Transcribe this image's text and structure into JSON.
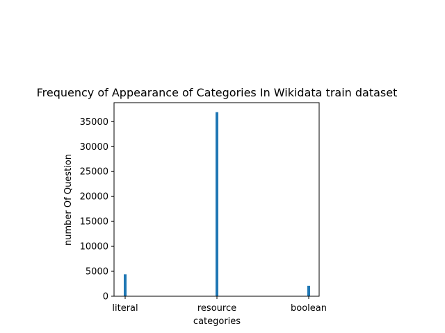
{
  "chart_data": {
    "type": "bar",
    "title": "Frequency of Appearance of Categories In Wikidata train dataset",
    "xlabel": "categories",
    "ylabel": "number Of Question",
    "categories": [
      "literal",
      "resource",
      "boolean"
    ],
    "values": [
      4400,
      36900,
      2100
    ],
    "ylim": [
      0,
      38800
    ],
    "yticks": [
      0,
      5000,
      10000,
      15000,
      20000,
      25000,
      30000,
      35000
    ],
    "bar_color": "#1f77b4",
    "grid": false,
    "legend": "none"
  }
}
